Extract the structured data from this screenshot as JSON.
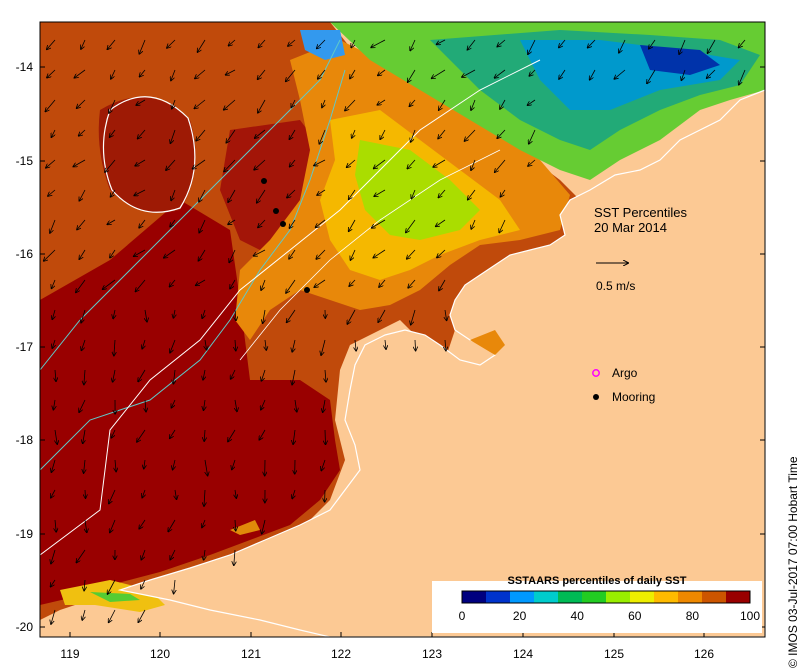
{
  "map": {
    "title_line1": "SST Percentiles",
    "title_line2": "20 Mar 2014",
    "vector_scale_label": "0.5 m/s",
    "credit": "© IMOS 03-Jul-2017 07:00 Hobart Time",
    "lon_ticks": [
      "119",
      "120",
      "121",
      "122",
      "123",
      "124",
      "125",
      "126"
    ],
    "lat_ticks": [
      "-14",
      "-15",
      "-16",
      "-17",
      "-18",
      "-19",
      "-20"
    ],
    "legend": {
      "argo_label": "Argo",
      "mooring_label": "Mooring",
      "argo_color": "#ff00ff",
      "mooring_color": "#000000"
    },
    "colorbar": {
      "title": "SSTAARS percentiles of daily SST",
      "tick_labels": [
        "0",
        "20",
        "40",
        "60",
        "80",
        "100"
      ],
      "colors": [
        "#00007f",
        "#0033cc",
        "#0099ff",
        "#00cccc",
        "#00bb55",
        "#22cc22",
        "#99ee00",
        "#eeee00",
        "#ffbb00",
        "#ee8800",
        "#cc5500",
        "#990000"
      ]
    },
    "land_color": "#fcc994"
  }
}
